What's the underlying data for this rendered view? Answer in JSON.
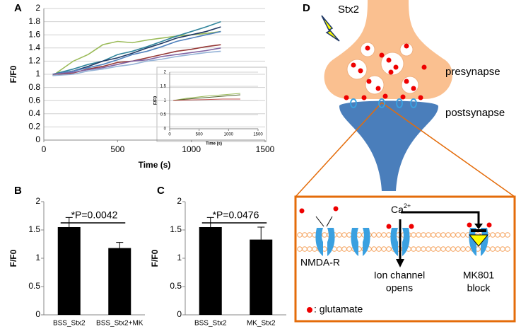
{
  "chart_data": [
    {
      "type": "line",
      "panel": "A",
      "xlabel": "Time (s)",
      "ylabel": "F/F0",
      "x": [
        60,
        200,
        300,
        400,
        500,
        600,
        700,
        800,
        900,
        1000,
        1100,
        1200
      ],
      "series": [
        {
          "color": "#9bbb59",
          "values": [
            0.98,
            1.2,
            1.3,
            1.45,
            1.5,
            1.48,
            1.52,
            1.55,
            1.58,
            1.6,
            1.62,
            1.65
          ]
        },
        {
          "color": "#31859c",
          "values": [
            1.0,
            1.08,
            1.15,
            1.2,
            1.3,
            1.35,
            1.42,
            1.5,
            1.58,
            1.65,
            1.72,
            1.8
          ]
        },
        {
          "color": "#1f3864",
          "values": [
            1.0,
            1.05,
            1.12,
            1.2,
            1.25,
            1.32,
            1.4,
            1.47,
            1.55,
            1.6,
            1.65,
            1.72
          ]
        },
        {
          "color": "#4f81bd",
          "values": [
            1.0,
            1.05,
            1.1,
            1.15,
            1.22,
            1.3,
            1.35,
            1.42,
            1.5,
            1.55,
            1.6,
            1.65
          ]
        },
        {
          "color": "#953735",
          "values": [
            0.98,
            1.02,
            1.08,
            1.12,
            1.18,
            1.2,
            1.25,
            1.3,
            1.35,
            1.38,
            1.42,
            1.45
          ]
        },
        {
          "color": "#8064a2",
          "values": [
            1.0,
            1.03,
            1.07,
            1.1,
            1.15,
            1.2,
            1.22,
            1.27,
            1.3,
            1.33,
            1.36,
            1.4
          ]
        },
        {
          "color": "#95b3d7",
          "values": [
            0.98,
            1.0,
            1.05,
            1.08,
            1.12,
            1.15,
            1.2,
            1.23,
            1.27,
            1.3,
            1.33,
            1.35
          ]
        }
      ],
      "xlim": [
        0,
        1500
      ],
      "xticks": [
        0,
        500,
        1000,
        1500
      ],
      "ylim": [
        0,
        2
      ],
      "yticks": [
        0,
        0.2,
        0.4,
        0.6,
        0.8,
        1,
        1.2,
        1.4,
        1.6,
        1.8,
        2
      ],
      "grid": true
    },
    {
      "type": "line",
      "xlabel": "Time (s)",
      "ylabel": "F/F0",
      "x": [
        60,
        300,
        600,
        900,
        1200
      ],
      "series": [
        {
          "color": "#9bbb59",
          "values": [
            1.0,
            1.08,
            1.15,
            1.2,
            1.25
          ]
        },
        {
          "color": "#4f6228",
          "values": [
            1.0,
            1.05,
            1.1,
            1.15,
            1.2
          ]
        },
        {
          "color": "#c0504d",
          "values": [
            1.0,
            1.02,
            1.03,
            1.05,
            1.05
          ]
        }
      ],
      "xlim": [
        0,
        1500
      ],
      "xticks": [
        0,
        500,
        1000,
        1500
      ],
      "ylim": [
        0,
        2
      ],
      "yticks": [
        0,
        0.5,
        1,
        1.5,
        2
      ],
      "grid": true
    },
    {
      "type": "bar",
      "panel": "B",
      "ylabel": "F/F0",
      "annotation": "*P=0.0042",
      "categories": [
        "BSS_Stx2",
        "BSS_Stx2+MK"
      ],
      "values": [
        1.55,
        1.18
      ],
      "errors": [
        0.17,
        0.1
      ],
      "color": "#000000",
      "ylim": [
        0,
        2
      ],
      "yticks": [
        0,
        0.5,
        1,
        1.5,
        2
      ],
      "grid": false
    },
    {
      "type": "bar",
      "panel": "C",
      "ylabel": "F/F0",
      "annotation": "*P=0.0476",
      "categories": [
        "BSS_Stx2",
        "MK_Stx2"
      ],
      "values": [
        1.55,
        1.33
      ],
      "errors": [
        0.17,
        0.22
      ],
      "color": "#000000",
      "ylim": [
        0,
        2
      ],
      "yticks": [
        0,
        0.5,
        1,
        1.5,
        2
      ],
      "grid": false
    }
  ],
  "diagram": {
    "panel": "D",
    "toxin": "Stx2",
    "presynapse": "presynapse",
    "postsynapse": "postsynapse",
    "ion": "Ca",
    "ion_charge": "2+",
    "receptor": "NMDA-R",
    "channel": [
      "Ion channel",
      "opens"
    ],
    "block": [
      "MK801",
      "block"
    ],
    "legend": ": glutamate"
  }
}
